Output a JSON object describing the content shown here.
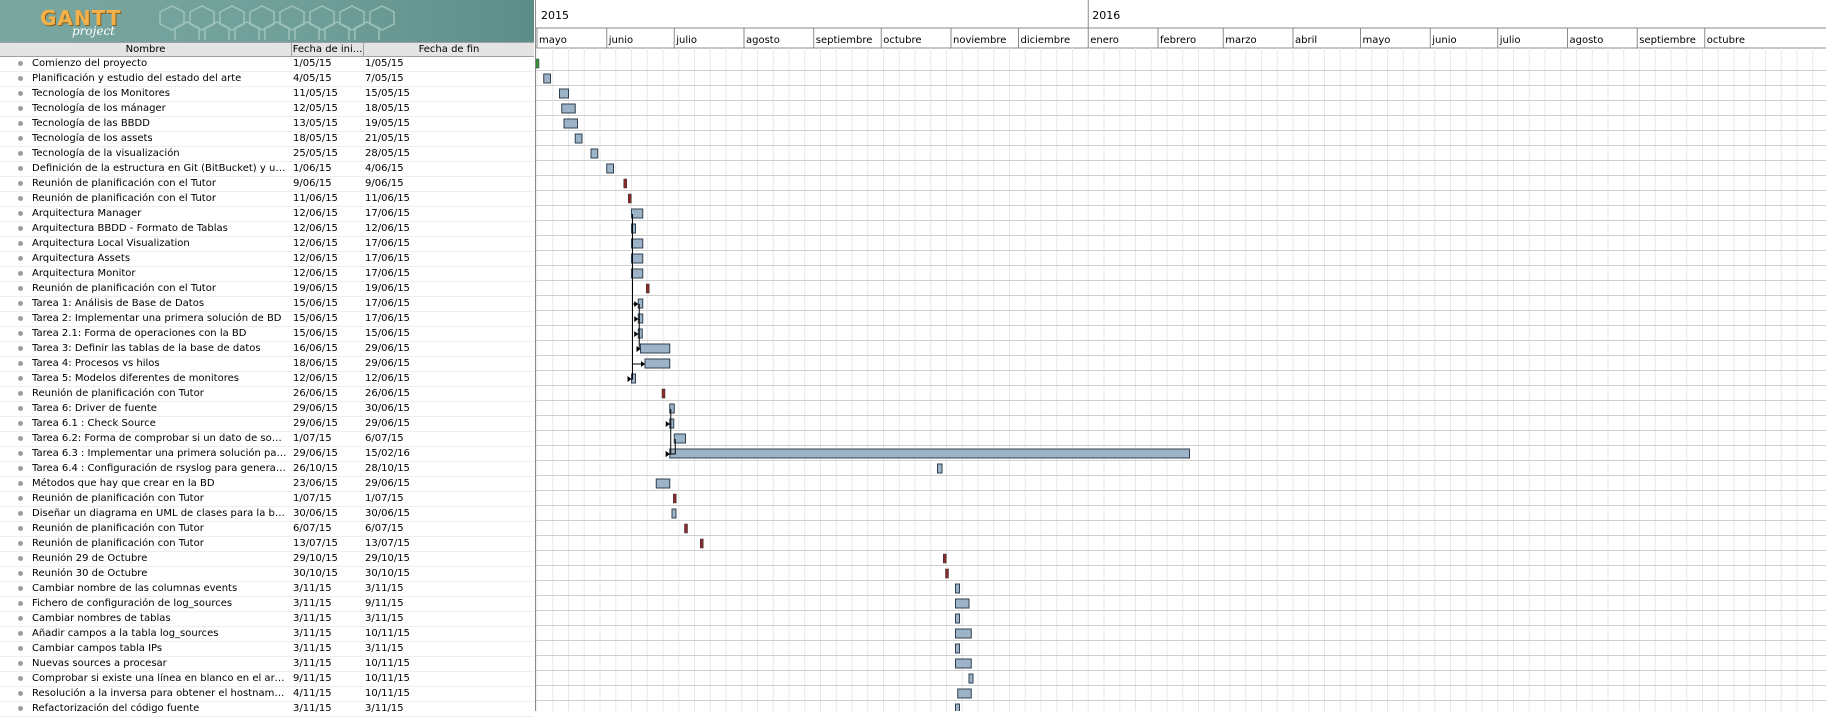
{
  "app": {
    "logo_text": "GANTT",
    "logo_sub": "project"
  },
  "table": {
    "columns": [
      "Nombre",
      "Fecha de ini...",
      "Fecha de fin"
    ]
  },
  "colors": {
    "bar_fill": "#9db4c8",
    "bar_stroke": "#2f3f4f",
    "milestone_fill": "#8a2a2a",
    "first_milestone_fill": "#3c9a3c",
    "header_bg": "#e4e4e4",
    "logo_bg": "#6f9e98"
  },
  "chart_data": {
    "type": "gantt",
    "years": [
      "2015",
      "2016"
    ],
    "months": [
      "mayo",
      "junio",
      "julio",
      "agosto",
      "septiembre",
      "octubre",
      "noviembre",
      "diciembre",
      "enero",
      "febrero",
      "marzo",
      "abril",
      "mayo",
      "junio",
      "julio",
      "agosto",
      "septiembre",
      "octubre"
    ],
    "tasks": [
      {
        "name": "Comienzo del proyecto",
        "start": "1/05/15",
        "end": "1/05/15",
        "s": "2015-05-01",
        "e": "2015-05-01",
        "kind": "start"
      },
      {
        "name": "Planificación y estudio del estado del arte",
        "start": "4/05/15",
        "end": "7/05/15",
        "s": "2015-05-04",
        "e": "2015-05-07",
        "kind": "task"
      },
      {
        "name": "Tecnología de los Monitores",
        "start": "11/05/15",
        "end": "15/05/15",
        "s": "2015-05-11",
        "e": "2015-05-15",
        "kind": "task"
      },
      {
        "name": "Tecnología de los mánager",
        "start": "12/05/15",
        "end": "18/05/15",
        "s": "2015-05-12",
        "e": "2015-05-18",
        "kind": "task"
      },
      {
        "name": "Tecnología de las BBDD",
        "start": "13/05/15",
        "end": "19/05/15",
        "s": "2015-05-13",
        "e": "2015-05-19",
        "kind": "task"
      },
      {
        "name": "Tecnología de los assets",
        "start": "18/05/15",
        "end": "21/05/15",
        "s": "2015-05-18",
        "e": "2015-05-21",
        "kind": "task"
      },
      {
        "name": "Tecnología de la visualización",
        "start": "25/05/15",
        "end": "28/05/15",
        "s": "2015-05-25",
        "e": "2015-05-28",
        "kind": "task"
      },
      {
        "name": "Definición de la estructura en Git (BitBucket) y uso...",
        "start": "1/06/15",
        "end": "4/06/15",
        "s": "2015-06-01",
        "e": "2015-06-04",
        "kind": "task"
      },
      {
        "name": "Reunión de planificación con el Tutor",
        "start": "9/06/15",
        "end": "9/06/15",
        "s": "2015-06-09",
        "e": "2015-06-09",
        "kind": "milestone"
      },
      {
        "name": "Reunión de planificación con el Tutor",
        "start": "11/06/15",
        "end": "11/06/15",
        "s": "2015-06-11",
        "e": "2015-06-11",
        "kind": "milestone"
      },
      {
        "name": "Arquitectura Manager",
        "start": "12/06/15",
        "end": "17/06/15",
        "s": "2015-06-12",
        "e": "2015-06-17",
        "kind": "task"
      },
      {
        "name": "Arquitectura BBDD - Formato de Tablas",
        "start": "12/06/15",
        "end": "12/06/15",
        "s": "2015-06-12",
        "e": "2015-06-13",
        "kind": "task"
      },
      {
        "name": "Arquitectura Local Visualization",
        "start": "12/06/15",
        "end": "17/06/15",
        "s": "2015-06-12",
        "e": "2015-06-17",
        "kind": "task"
      },
      {
        "name": "Arquitectura Assets",
        "start": "12/06/15",
        "end": "17/06/15",
        "s": "2015-06-12",
        "e": "2015-06-17",
        "kind": "task"
      },
      {
        "name": "Arquitectura Monitor",
        "start": "12/06/15",
        "end": "17/06/15",
        "s": "2015-06-12",
        "e": "2015-06-17",
        "kind": "task"
      },
      {
        "name": "Reunión de planificación con el Tutor",
        "start": "19/06/15",
        "end": "19/06/15",
        "s": "2015-06-19",
        "e": "2015-06-19",
        "kind": "milestone"
      },
      {
        "name": "Tarea 1: Análisis de Base de Datos",
        "start": "15/06/15",
        "end": "17/06/15",
        "s": "2015-06-15",
        "e": "2015-06-17",
        "kind": "task"
      },
      {
        "name": "Tarea 2: Implementar una primera solución de BD",
        "start": "15/06/15",
        "end": "17/06/15",
        "s": "2015-06-15",
        "e": "2015-06-17",
        "kind": "task"
      },
      {
        "name": "Tarea 2.1: Forma de operaciones con la BD",
        "start": "15/06/15",
        "end": "15/06/15",
        "s": "2015-06-15",
        "e": "2015-06-16",
        "kind": "task"
      },
      {
        "name": "Tarea 3: Definir las tablas de la base de datos",
        "start": "16/06/15",
        "end": "29/06/15",
        "s": "2015-06-16",
        "e": "2015-06-29",
        "kind": "task"
      },
      {
        "name": "Tarea 4: Procesos vs hilos",
        "start": "18/06/15",
        "end": "29/06/15",
        "s": "2015-06-18",
        "e": "2015-06-29",
        "kind": "task"
      },
      {
        "name": "Tarea 5: Modelos diferentes de monitores",
        "start": "12/06/15",
        "end": "12/06/15",
        "s": "2015-06-12",
        "e": "2015-06-13",
        "kind": "task"
      },
      {
        "name": "Reunión de planificación con Tutor",
        "start": "26/06/15",
        "end": "26/06/15",
        "s": "2015-06-26",
        "e": "2015-06-26",
        "kind": "milestone"
      },
      {
        "name": "Tarea 6: Driver de fuente",
        "start": "29/06/15",
        "end": "30/06/15",
        "s": "2015-06-29",
        "e": "2015-07-01",
        "kind": "task"
      },
      {
        "name": "Tarea 6.1 : Check Source",
        "start": "29/06/15",
        "end": "29/06/15",
        "s": "2015-06-29",
        "e": "2015-06-30",
        "kind": "task"
      },
      {
        "name": "Tarea 6.2: Forma de comprobar si un dato de sour...",
        "start": "1/07/15",
        "end": "6/07/15",
        "s": "2015-07-01",
        "e": "2015-07-06",
        "kind": "task"
      },
      {
        "name": "Tarea 6.3 : Implementar una primera solución para...",
        "start": "29/06/15",
        "end": "15/02/16",
        "s": "2015-06-29",
        "e": "2016-02-15",
        "kind": "task"
      },
      {
        "name": "Tarea 6.4 : Configuración de rsyslog para generaci...",
        "start": "26/10/15",
        "end": "28/10/15",
        "s": "2015-10-26",
        "e": "2015-10-28",
        "kind": "task"
      },
      {
        "name": "Métodos que hay que crear en la BD",
        "start": "23/06/15",
        "end": "29/06/15",
        "s": "2015-06-23",
        "e": "2015-06-29",
        "kind": "task"
      },
      {
        "name": "Reunión de planificación con Tutor",
        "start": "1/07/15",
        "end": "1/07/15",
        "s": "2015-07-01",
        "e": "2015-07-01",
        "kind": "milestone"
      },
      {
        "name": "Diseñar un diagrama en UML de clases para la bas...",
        "start": "30/06/15",
        "end": "30/06/15",
        "s": "2015-06-30",
        "e": "2015-07-01",
        "kind": "task"
      },
      {
        "name": "Reunión de planificación con Tutor",
        "start": "6/07/15",
        "end": "6/07/15",
        "s": "2015-07-06",
        "e": "2015-07-06",
        "kind": "milestone"
      },
      {
        "name": "Reunión de planificación con Tutor",
        "start": "13/07/15",
        "end": "13/07/15",
        "s": "2015-07-13",
        "e": "2015-07-13",
        "kind": "milestone"
      },
      {
        "name": "Reunión 29 de Octubre",
        "start": "29/10/15",
        "end": "29/10/15",
        "s": "2015-10-29",
        "e": "2015-10-29",
        "kind": "milestone"
      },
      {
        "name": "Reunión 30 de Octubre",
        "start": "30/10/15",
        "end": "30/10/15",
        "s": "2015-10-30",
        "e": "2015-10-30",
        "kind": "milestone"
      },
      {
        "name": "Cambiar nombre de las columnas events",
        "start": "3/11/15",
        "end": "3/11/15",
        "s": "2015-11-03",
        "e": "2015-11-04",
        "kind": "task"
      },
      {
        "name": "Fichero de configuración de log_sources",
        "start": "3/11/15",
        "end": "9/11/15",
        "s": "2015-11-03",
        "e": "2015-11-09",
        "kind": "task"
      },
      {
        "name": "Cambiar nombres de tablas",
        "start": "3/11/15",
        "end": "3/11/15",
        "s": "2015-11-03",
        "e": "2015-11-04",
        "kind": "task"
      },
      {
        "name": "Añadir campos a la tabla log_sources",
        "start": "3/11/15",
        "end": "10/11/15",
        "s": "2015-11-03",
        "e": "2015-11-10",
        "kind": "task"
      },
      {
        "name": "Cambiar campos tabla IPs",
        "start": "3/11/15",
        "end": "3/11/15",
        "s": "2015-11-03",
        "e": "2015-11-04",
        "kind": "task"
      },
      {
        "name": "Nuevas sources a procesar",
        "start": "3/11/15",
        "end": "10/11/15",
        "s": "2015-11-03",
        "e": "2015-11-10",
        "kind": "task"
      },
      {
        "name": "Comprobar si existe una línea en blanco en el arch...",
        "start": "9/11/15",
        "end": "10/11/15",
        "s": "2015-11-09",
        "e": "2015-11-10",
        "kind": "task"
      },
      {
        "name": "Resolución a la inversa para obtener el hostname ...",
        "start": "4/11/15",
        "end": "10/11/15",
        "s": "2015-11-04",
        "e": "2015-11-10",
        "kind": "task"
      },
      {
        "name": "Refactorización del código fuente",
        "start": "3/11/15",
        "end": "3/11/15",
        "s": "2015-11-03",
        "e": "2015-11-04",
        "kind": "task"
      }
    ]
  }
}
